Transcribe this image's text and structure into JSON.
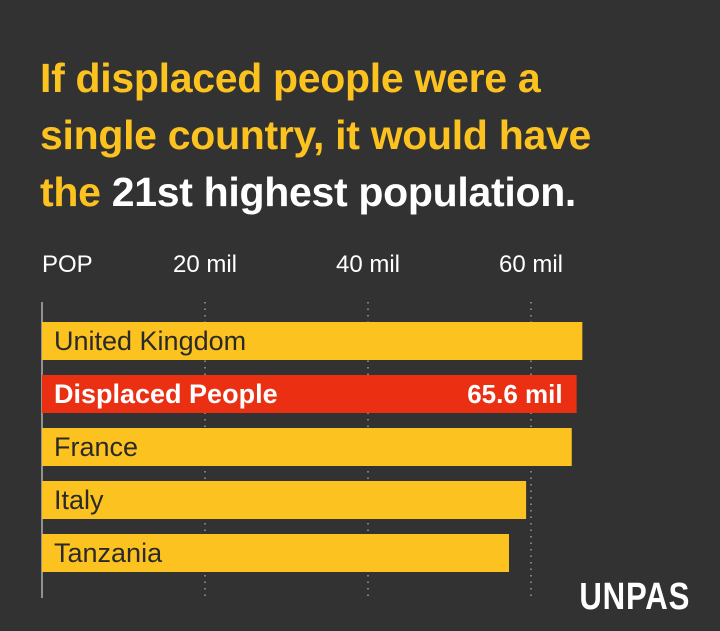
{
  "title": {
    "line1": "If displaced people were a",
    "line2": "single country, it would have",
    "line3_prefix": "the",
    "line3_highlight": "21st highest population."
  },
  "chart_data": {
    "type": "bar",
    "orientation": "horizontal",
    "axis_label": "POP",
    "x_ticks": [
      {
        "value": 20,
        "label": "20 mil"
      },
      {
        "value": 40,
        "label": "40 mil"
      },
      {
        "value": 60,
        "label": "60 mil"
      }
    ],
    "xlim": [
      0,
      67
    ],
    "grid": "dotted vertical",
    "categories": [
      "United Kingdom",
      "Displaced People",
      "France",
      "Italy",
      "Tanzania"
    ],
    "values": [
      66.3,
      65.6,
      65.0,
      59.4,
      57.3
    ],
    "data_labels": {
      "Displaced People": "65.6 mil"
    },
    "highlight": "Displaced People"
  },
  "colors": {
    "background": "#323232",
    "bar": "#fcc21f",
    "highlight_bar": "#ea2f13",
    "title": "#fcc21f",
    "title_highlight": "#ffffff",
    "grid": "#9a9a9a",
    "axis_text": "#ffffff"
  },
  "watermark": "UNPAS"
}
